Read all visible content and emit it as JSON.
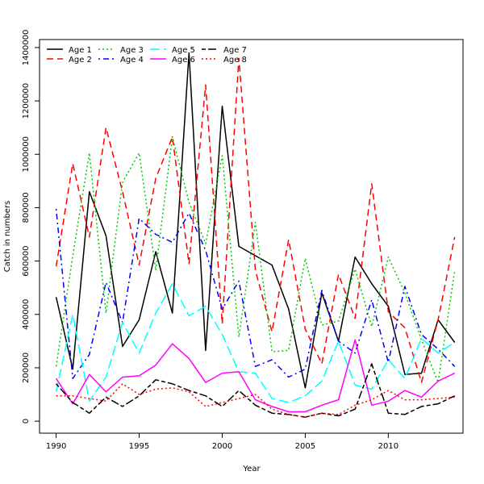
{
  "chart_data": {
    "type": "line",
    "title": "",
    "xlabel": "Year",
    "ylabel": "Catch in numbers",
    "xlim": [
      1989,
      2014.5
    ],
    "ylim": [
      -45000,
      1430000
    ],
    "x_ticks": [
      1990,
      1995,
      2000,
      2005,
      2010
    ],
    "y_ticks": [
      0,
      200000,
      400000,
      600000,
      800000,
      1000000,
      1200000,
      1400000
    ],
    "grid": false,
    "legend_position": "top-left",
    "x": [
      1990,
      1991,
      1992,
      1993,
      1994,
      1995,
      1996,
      1997,
      1998,
      1999,
      2000,
      2001,
      2002,
      2003,
      2004,
      2005,
      2006,
      2007,
      2008,
      2009,
      2010,
      2011,
      2012,
      2013,
      2014
    ],
    "series": [
      {
        "name": "Age 1",
        "color": "#000000",
        "dash": "solid",
        "values": [
          465000,
          195000,
          860000,
          695000,
          280000,
          380000,
          635000,
          405000,
          1380000,
          265000,
          1180000,
          655000,
          620000,
          585000,
          420000,
          125000,
          480000,
          300000,
          615000,
          515000,
          430000,
          175000,
          180000,
          380000,
          295000
        ]
      },
      {
        "name": "Age 2",
        "color": "#ff0000",
        "dash": "dashed",
        "values": [
          580000,
          965000,
          690000,
          1100000,
          860000,
          585000,
          910000,
          1065000,
          590000,
          1260000,
          365000,
          1360000,
          565000,
          335000,
          680000,
          345000,
          215000,
          550000,
          385000,
          890000,
          410000,
          350000,
          145000,
          380000,
          690000
        ]
      },
      {
        "name": "Age 3",
        "color": "#00cc00",
        "dash": "dotted",
        "values": [
          205000,
          620000,
          1005000,
          405000,
          895000,
          1005000,
          565000,
          1065000,
          820000,
          665000,
          995000,
          315000,
          745000,
          260000,
          265000,
          610000,
          360000,
          375000,
          570000,
          355000,
          615000,
          480000,
          305000,
          145000,
          565000
        ]
      },
      {
        "name": "Age 4",
        "color": "#0000ff",
        "dash": "dotdash",
        "values": [
          795000,
          160000,
          250000,
          520000,
          370000,
          760000,
          700000,
          670000,
          780000,
          640000,
          420000,
          525000,
          205000,
          230000,
          165000,
          195000,
          490000,
          300000,
          255000,
          455000,
          220000,
          505000,
          325000,
          270000,
          205000
        ]
      },
      {
        "name": "Age 5",
        "color": "#00ffff",
        "dash": "longdash",
        "values": [
          110000,
          400000,
          75000,
          165000,
          370000,
          255000,
          405000,
          515000,
          395000,
          430000,
          325000,
          185000,
          180000,
          85000,
          70000,
          95000,
          150000,
          300000,
          135000,
          120000,
          230000,
          160000,
          310000,
          255000,
          295000
        ]
      },
      {
        "name": "Age 6",
        "color": "#ff00ff",
        "dash": "solid",
        "values": [
          160000,
          65000,
          175000,
          110000,
          165000,
          170000,
          210000,
          290000,
          235000,
          145000,
          180000,
          185000,
          80000,
          55000,
          35000,
          35000,
          60000,
          80000,
          305000,
          60000,
          75000,
          115000,
          90000,
          150000,
          180000
        ]
      },
      {
        "name": "Age 7",
        "color": "#000000",
        "dash": "twodash",
        "values": [
          140000,
          70000,
          30000,
          90000,
          55000,
          95000,
          155000,
          140000,
          115000,
          95000,
          55000,
          115000,
          60000,
          30000,
          25000,
          15000,
          30000,
          20000,
          45000,
          215000,
          30000,
          25000,
          55000,
          65000,
          95000
        ]
      },
      {
        "name": "Age 8",
        "color": "#ff0000",
        "dash": "dotted",
        "values": [
          95000,
          95000,
          85000,
          75000,
          140000,
          100000,
          120000,
          125000,
          110000,
          55000,
          70000,
          85000,
          100000,
          45000,
          25000,
          15000,
          30000,
          25000,
          60000,
          80000,
          115000,
          80000,
          80000,
          85000,
          90000
        ]
      }
    ]
  }
}
